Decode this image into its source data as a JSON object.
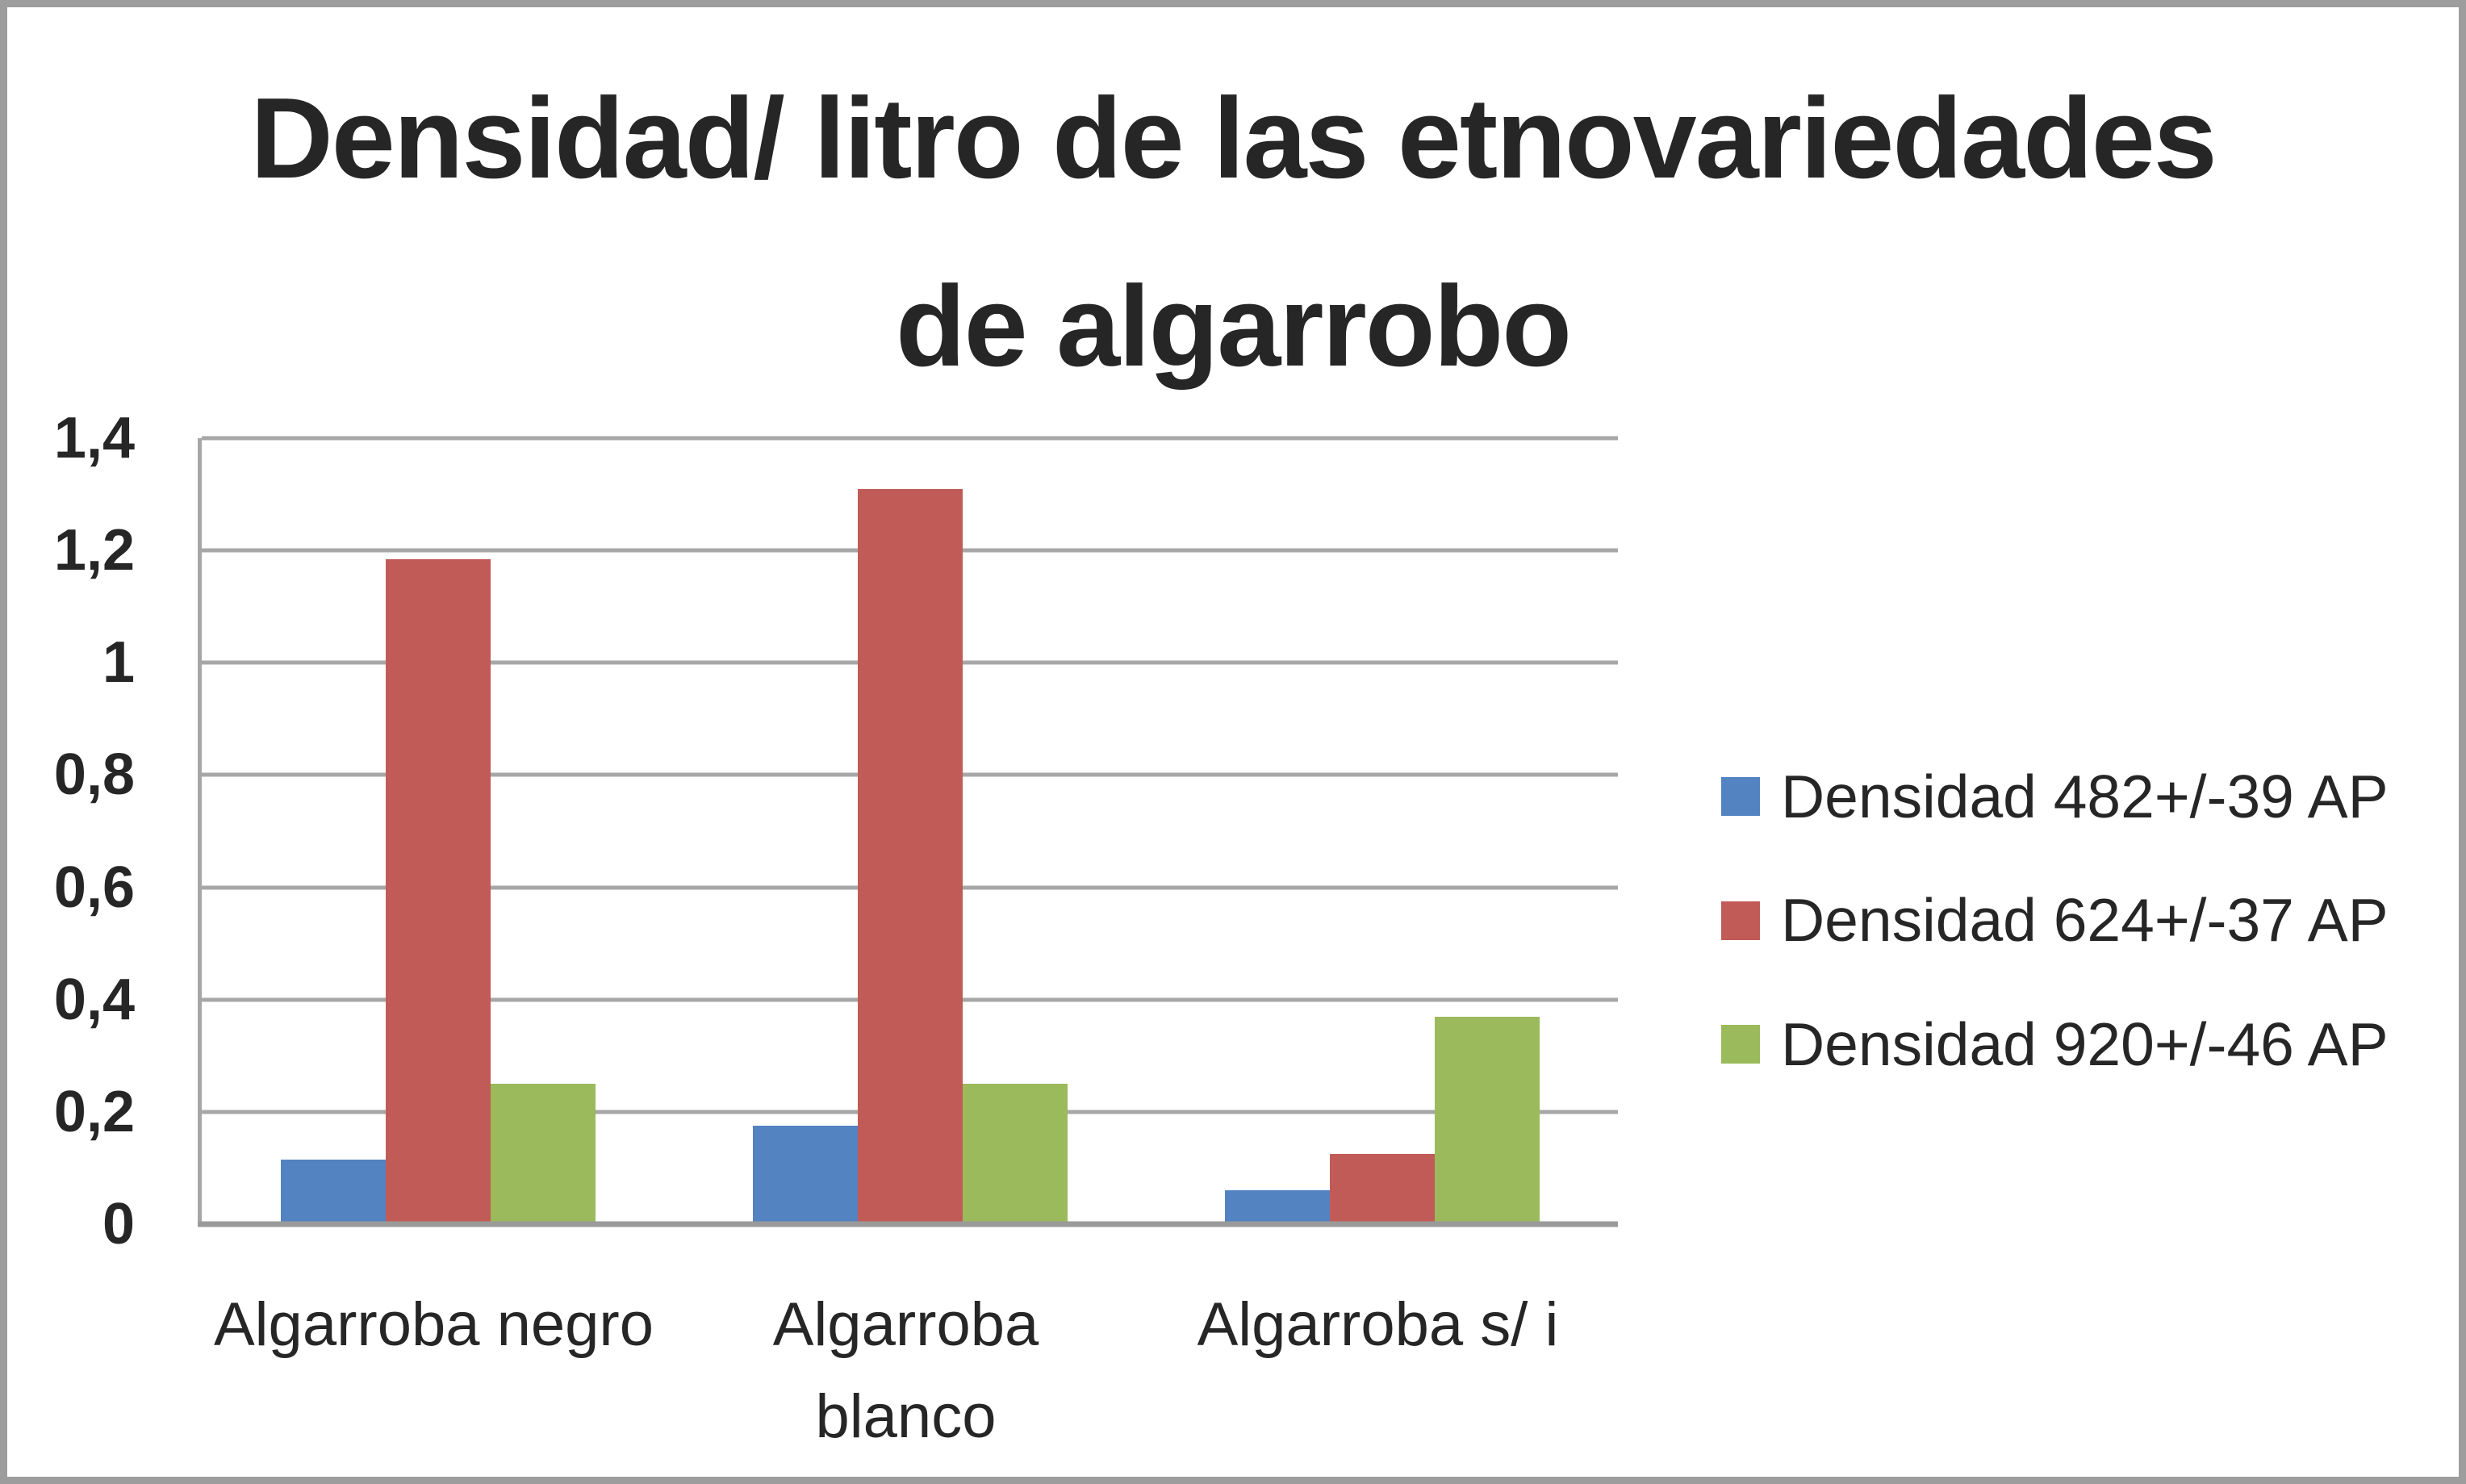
{
  "title": {
    "line1": "Densidad/ litro de las etnovariedades",
    "line2": "de algarrobo"
  },
  "chart_data": {
    "type": "bar",
    "title": "Densidad/ litro de las etnovariedades de algarrobo",
    "categories": [
      "Algarroba negro",
      "Algarroba blanco",
      "Algarroba s/ i"
    ],
    "series": [
      {
        "name": "Densidad 482+/-39 AP",
        "color": "#5383C1",
        "values": [
          0.115,
          0.175,
          0.06
        ]
      },
      {
        "name": "Densidad 624+/-37 AP",
        "color": "#C15B57",
        "values": [
          1.185,
          1.31,
          0.125
        ]
      },
      {
        "name": "Densidad 920+/-46 AP",
        "color": "#9BBA5B",
        "values": [
          0.25,
          0.25,
          0.37
        ]
      }
    ],
    "y_axis": {
      "min": 0,
      "max": 1.4,
      "step": 0.2,
      "tick_labels_top_to_bottom": [
        "1,4",
        "1,2",
        "1",
        "0,8",
        "0,6",
        "0,4",
        "0,2",
        "0"
      ],
      "decimal_separator": ","
    },
    "xlabel": "",
    "ylabel": "",
    "grid": true,
    "legend_position": "right"
  },
  "colors": {
    "gridline": "#A7A7A7",
    "axis_line": "#9A9A9A",
    "frame_border": "#9D9D9D",
    "text": "#262626",
    "background": "#FFFFFF"
  }
}
